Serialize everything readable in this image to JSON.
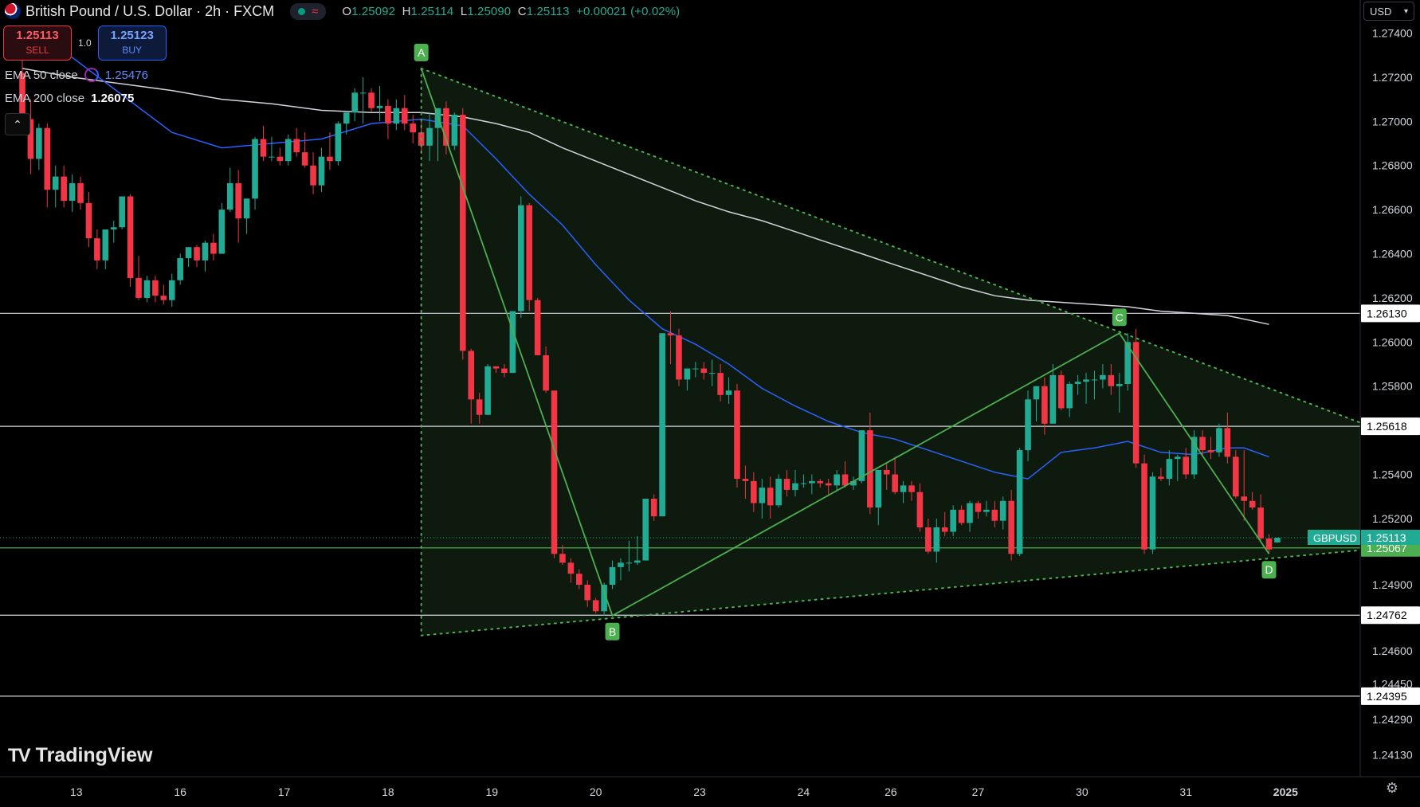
{
  "header": {
    "symbol_title": "British Pound / U.S. Dollar · 2h · FXCM",
    "ohlc": {
      "o": "1.25092",
      "h": "1.25114",
      "l": "1.25090",
      "c": "1.25113",
      "change": "+0.00021 (+0.02%)"
    },
    "status_icon": "market-open-dot"
  },
  "trade": {
    "sell_price": "1.25113",
    "sell_label": "SELL",
    "buy_price": "1.25123",
    "buy_label": "BUY",
    "quantity": "1.0"
  },
  "indicators": {
    "ema50_label": "EMA 50 close",
    "ema50_value": "1.25476",
    "ema200_label": "EMA 200 close",
    "ema200_value": "1.26075"
  },
  "currency_selector": "USD",
  "branding": {
    "logo_text": "TradingView"
  },
  "colors": {
    "up": "#22ab94",
    "down": "#f23645",
    "ema50": "#2962ff",
    "ema200": "#d1d4dc",
    "pattern": "#4caf50",
    "pattern_fill": "#0e1d0e",
    "background": "#000000"
  },
  "chart_data": {
    "type": "candlestick",
    "symbol": "GBPUSD",
    "last_price": 1.25113,
    "ylim": [
      1.2403,
      1.2755
    ],
    "y_ticks": [
      "1.27400",
      "1.27200",
      "1.27000",
      "1.26800",
      "1.26600",
      "1.26400",
      "1.26200",
      "1.26000",
      "1.25800",
      "1.25400",
      "1.25200",
      "1.24900",
      "1.24600",
      "1.24450",
      "1.24290",
      "1.24130"
    ],
    "x_ticks": [
      "13",
      "16",
      "17",
      "18",
      "19",
      "20",
      "23",
      "24",
      "26",
      "27",
      "30",
      "31",
      "2025"
    ],
    "x_tick_index": [
      6.5,
      19,
      31.5,
      44,
      56.5,
      69,
      81.5,
      94,
      104.5,
      115,
      127.5,
      140,
      152
    ],
    "horizontal_levels": [
      1.2613,
      1.25618,
      1.25067,
      1.24762,
      1.24395
    ],
    "level_labels": [
      "1.26130",
      "1.25618",
      "1.25067",
      "1.24762",
      "1.24395"
    ],
    "price_label": "GBPUSD",
    "price_value": "1.25113",
    "pattern_points": [
      {
        "label": "A",
        "i": 48,
        "price": 1.2724
      },
      {
        "label": "B",
        "i": 71,
        "price": 1.2476
      },
      {
        "label": "C",
        "i": 132,
        "price": 1.2604
      },
      {
        "label": "D",
        "i": 150,
        "price": 1.2504
      }
    ],
    "triangle": {
      "upper": [
        [
          48,
          1.2724
        ],
        [
          162,
          1.2562
        ]
      ],
      "lower": [
        [
          48,
          1.2467
        ],
        [
          162,
          1.2506
        ]
      ]
    },
    "candles": [
      [
        1.2722,
        1.2735,
        1.2698,
        1.2701
      ],
      [
        1.2701,
        1.271,
        1.2676,
        1.2683
      ],
      [
        1.2683,
        1.2699,
        1.2678,
        1.2697
      ],
      [
        1.2697,
        1.2699,
        1.2661,
        1.2669
      ],
      [
        1.2669,
        1.268,
        1.2661,
        1.2675
      ],
      [
        1.2675,
        1.268,
        1.2661,
        1.2664
      ],
      [
        1.2664,
        1.2676,
        1.2659,
        1.2672
      ],
      [
        1.2672,
        1.2675,
        1.266,
        1.2663
      ],
      [
        1.2663,
        1.2668,
        1.2643,
        1.2647
      ],
      [
        1.2647,
        1.2651,
        1.2633,
        1.2637
      ],
      [
        1.2637,
        1.2651,
        1.2633,
        1.2651
      ],
      [
        1.2651,
        1.2655,
        1.2645,
        1.2652
      ],
      [
        1.2652,
        1.2666,
        1.2651,
        1.2666
      ],
      [
        1.2666,
        1.2667,
        1.2625,
        1.2629
      ],
      [
        1.2629,
        1.2639,
        1.2619,
        1.262
      ],
      [
        1.262,
        1.263,
        1.2618,
        1.2628
      ],
      [
        1.2628,
        1.263,
        1.2618,
        1.2621
      ],
      [
        1.2621,
        1.2626,
        1.2617,
        1.2619
      ],
      [
        1.2619,
        1.2631,
        1.2616,
        1.2628
      ],
      [
        1.2628,
        1.264,
        1.2626,
        1.2638
      ],
      [
        1.2638,
        1.2643,
        1.2634,
        1.2643
      ],
      [
        1.2643,
        1.2644,
        1.2634,
        1.2637
      ],
      [
        1.2637,
        1.2646,
        1.2632,
        1.2645
      ],
      [
        1.2645,
        1.2649,
        1.2637,
        1.264
      ],
      [
        1.264,
        1.2663,
        1.264,
        1.266
      ],
      [
        1.266,
        1.2679,
        1.2659,
        1.2672
      ],
      [
        1.2672,
        1.2678,
        1.2645,
        1.2656
      ],
      [
        1.2656,
        1.2665,
        1.2649,
        1.2665
      ],
      [
        1.2665,
        1.2693,
        1.266,
        1.2692
      ],
      [
        1.2692,
        1.2698,
        1.2682,
        1.2684
      ],
      [
        1.2684,
        1.2693,
        1.2682,
        1.2684
      ],
      [
        1.2684,
        1.2688,
        1.268,
        1.2682
      ],
      [
        1.2682,
        1.2694,
        1.268,
        1.2692
      ],
      [
        1.2692,
        1.2697,
        1.2684,
        1.2686
      ],
      [
        1.2686,
        1.2695,
        1.2679,
        1.268
      ],
      [
        1.268,
        1.2686,
        1.2667,
        1.2671
      ],
      [
        1.2671,
        1.2688,
        1.2668,
        1.2684
      ],
      [
        1.2684,
        1.2695,
        1.2678,
        1.2682
      ],
      [
        1.2682,
        1.27,
        1.268,
        1.2699
      ],
      [
        1.2699,
        1.2704,
        1.2694,
        1.2704
      ],
      [
        1.2704,
        1.2715,
        1.27,
        1.2713
      ],
      [
        1.2713,
        1.272,
        1.2699,
        1.2713
      ],
      [
        1.2713,
        1.2715,
        1.2704,
        1.2706
      ],
      [
        1.2706,
        1.2716,
        1.27,
        1.2707
      ],
      [
        1.2707,
        1.271,
        1.2692,
        1.2699
      ],
      [
        1.2699,
        1.271,
        1.2696,
        1.2706
      ],
      [
        1.2706,
        1.2712,
        1.2696,
        1.2699
      ],
      [
        1.2699,
        1.2703,
        1.269,
        1.2695
      ],
      [
        1.2695,
        1.27,
        1.2686,
        1.2689
      ],
      [
        1.2689,
        1.2704,
        1.2682,
        1.2697
      ],
      [
        1.2697,
        1.2703,
        1.2682,
        1.2706
      ],
      [
        1.2706,
        1.2709,
        1.2685,
        1.2689
      ],
      [
        1.2689,
        1.2704,
        1.2687,
        1.2703
      ],
      [
        1.2703,
        1.2706,
        1.2592,
        1.2596
      ],
      [
        1.2596,
        1.2597,
        1.2563,
        1.2574
      ],
      [
        1.2574,
        1.2577,
        1.2563,
        1.2567
      ],
      [
        1.2567,
        1.259,
        1.2567,
        1.2589
      ],
      [
        1.2589,
        1.2589,
        1.2586,
        1.2588
      ],
      [
        1.2588,
        1.259,
        1.2584,
        1.2586
      ],
      [
        1.2586,
        1.2614,
        1.2586,
        1.2614
      ],
      [
        1.2614,
        1.2666,
        1.2611,
        1.2662
      ],
      [
        1.2662,
        1.2663,
        1.2614,
        1.2619
      ],
      [
        1.2619,
        1.262,
        1.2594,
        1.2594
      ],
      [
        1.2594,
        1.2598,
        1.2577,
        1.2578
      ],
      [
        1.2578,
        1.2578,
        1.2502,
        1.2504
      ],
      [
        1.2504,
        1.2508,
        1.2499,
        1.25
      ],
      [
        1.25,
        1.2502,
        1.2491,
        1.2495
      ],
      [
        1.2495,
        1.2497,
        1.2488,
        1.249
      ],
      [
        1.249,
        1.2492,
        1.248,
        1.2483
      ],
      [
        1.2483,
        1.2484,
        1.2477,
        1.2478
      ],
      [
        1.2478,
        1.2491,
        1.2476,
        1.249
      ],
      [
        1.249,
        1.2501,
        1.2488,
        1.2498
      ],
      [
        1.2498,
        1.2502,
        1.2492,
        1.25
      ],
      [
        1.25,
        1.251,
        1.2496,
        1.25
      ],
      [
        1.25,
        1.2512,
        1.2499,
        1.2501
      ],
      [
        1.2501,
        1.2529,
        1.2501,
        1.2529
      ],
      [
        1.2529,
        1.2531,
        1.2519,
        1.2521
      ],
      [
        1.2521,
        1.2604,
        1.2521,
        1.2604
      ],
      [
        1.2604,
        1.2614,
        1.259,
        1.2603
      ],
      [
        1.2603,
        1.2606,
        1.258,
        1.2583
      ],
      [
        1.2583,
        1.2588,
        1.2578,
        1.2588
      ],
      [
        1.2588,
        1.2591,
        1.2584,
        1.2588
      ],
      [
        1.2588,
        1.2591,
        1.2583,
        1.2586
      ],
      [
        1.2586,
        1.2592,
        1.258,
        1.2586
      ],
      [
        1.2586,
        1.259,
        1.2573,
        1.2576
      ],
      [
        1.2576,
        1.2584,
        1.2572,
        1.2578
      ],
      [
        1.2578,
        1.2581,
        1.2534,
        1.2538
      ],
      [
        1.2538,
        1.2544,
        1.2529,
        1.2537
      ],
      [
        1.2537,
        1.2541,
        1.2523,
        1.2527
      ],
      [
        1.2527,
        1.2538,
        1.252,
        1.2534
      ],
      [
        1.2534,
        1.2539,
        1.252,
        1.2526
      ],
      [
        1.2526,
        1.254,
        1.2525,
        1.2538
      ],
      [
        1.2538,
        1.2542,
        1.253,
        1.2533
      ],
      [
        1.2533,
        1.2542,
        1.253,
        1.2536
      ],
      [
        1.2536,
        1.254,
        1.2534,
        1.2536
      ],
      [
        1.2536,
        1.254,
        1.2531,
        1.2537
      ],
      [
        1.2537,
        1.2538,
        1.2534,
        1.2536
      ],
      [
        1.2536,
        1.2538,
        1.2531,
        1.2535
      ],
      [
        1.2535,
        1.2542,
        1.2533,
        1.254
      ],
      [
        1.254,
        1.2546,
        1.2534,
        1.2535
      ],
      [
        1.2535,
        1.2539,
        1.2533,
        1.2537
      ],
      [
        1.2537,
        1.256,
        1.2536,
        1.256
      ],
      [
        1.256,
        1.2568,
        1.2522,
        1.2525
      ],
      [
        1.2525,
        1.254,
        1.2517,
        1.2542
      ],
      [
        1.2542,
        1.2545,
        1.2533,
        1.254
      ],
      [
        1.254,
        1.2548,
        1.2531,
        1.2532
      ],
      [
        1.2532,
        1.2537,
        1.2527,
        1.2535
      ],
      [
        1.2535,
        1.2537,
        1.2528,
        1.2532
      ],
      [
        1.2532,
        1.2536,
        1.2514,
        1.2516
      ],
      [
        1.2516,
        1.252,
        1.2504,
        1.2505
      ],
      [
        1.2505,
        1.252,
        1.25,
        1.2516
      ],
      [
        1.2516,
        1.2523,
        1.2512,
        1.2514
      ],
      [
        1.2514,
        1.2526,
        1.2512,
        1.2524
      ],
      [
        1.2524,
        1.2526,
        1.2517,
        1.2518
      ],
      [
        1.2518,
        1.2528,
        1.2514,
        1.2527
      ],
      [
        1.2527,
        1.2528,
        1.252,
        1.2523
      ],
      [
        1.2523,
        1.2528,
        1.2521,
        1.2524
      ],
      [
        1.2524,
        1.2528,
        1.2516,
        1.2519
      ],
      [
        1.2519,
        1.253,
        1.2515,
        1.2528
      ],
      [
        1.2528,
        1.2533,
        1.2501,
        1.2504
      ],
      [
        1.2504,
        1.2552,
        1.2503,
        1.2551
      ],
      [
        1.2551,
        1.2578,
        1.2546,
        1.2574
      ],
      [
        1.2574,
        1.258,
        1.2564,
        1.258
      ],
      [
        1.258,
        1.2584,
        1.2558,
        1.2563
      ],
      [
        1.2563,
        1.259,
        1.2563,
        1.2585
      ],
      [
        1.2585,
        1.2587,
        1.2569,
        1.257
      ],
      [
        1.257,
        1.2582,
        1.2566,
        1.2581
      ],
      [
        1.2581,
        1.2585,
        1.2576,
        1.2582
      ],
      [
        1.2582,
        1.2586,
        1.2572,
        1.2583
      ],
      [
        1.2583,
        1.2587,
        1.2574,
        1.2583
      ],
      [
        1.2583,
        1.259,
        1.2579,
        1.2585
      ],
      [
        1.2585,
        1.259,
        1.2576,
        1.258
      ],
      [
        1.258,
        1.2586,
        1.2568,
        1.2581
      ],
      [
        1.2581,
        1.2604,
        1.2578,
        1.26
      ],
      [
        1.26,
        1.2606,
        1.2543,
        1.2545
      ],
      [
        1.2545,
        1.2549,
        1.2504,
        1.2506
      ],
      [
        1.2506,
        1.2541,
        1.2504,
        1.2539
      ],
      [
        1.2539,
        1.2543,
        1.2537,
        1.2538
      ],
      [
        1.2538,
        1.2551,
        1.2535,
        1.2547
      ],
      [
        1.2547,
        1.2549,
        1.2537,
        1.2548
      ],
      [
        1.2548,
        1.2552,
        1.2538,
        1.254
      ],
      [
        1.254,
        1.256,
        1.2538,
        1.2557
      ],
      [
        1.2557,
        1.256,
        1.2548,
        1.2551
      ],
      [
        1.2551,
        1.2557,
        1.2547,
        1.255
      ],
      [
        1.255,
        1.2563,
        1.2548,
        1.2561
      ],
      [
        1.2561,
        1.2568,
        1.2545,
        1.2548
      ],
      [
        1.2548,
        1.2551,
        1.2529,
        1.253
      ],
      [
        1.253,
        1.2551,
        1.2519,
        1.2528
      ],
      [
        1.2528,
        1.2532,
        1.2524,
        1.2525
      ],
      [
        1.2525,
        1.2531,
        1.251,
        1.2511
      ],
      [
        1.2511,
        1.2513,
        1.2504,
        1.2506
      ],
      [
        1.25092,
        1.25114,
        1.2509,
        1.25113
      ]
    ],
    "ema50": [
      [
        0,
        1.2735
      ],
      [
        6,
        1.2729
      ],
      [
        12,
        1.2712
      ],
      [
        18,
        1.2695
      ],
      [
        24,
        1.2688
      ],
      [
        30,
        1.269
      ],
      [
        36,
        1.2692
      ],
      [
        42,
        1.2699
      ],
      [
        48,
        1.2701
      ],
      [
        53,
        1.2698
      ],
      [
        57,
        1.2683
      ],
      [
        61,
        1.2667
      ],
      [
        65,
        1.2653
      ],
      [
        69,
        1.2635
      ],
      [
        73,
        1.2619
      ],
      [
        77,
        1.2606
      ],
      [
        81,
        1.2599
      ],
      [
        85,
        1.259
      ],
      [
        89,
        1.2579
      ],
      [
        93,
        1.2571
      ],
      [
        97,
        1.2564
      ],
      [
        101,
        1.2559
      ],
      [
        105,
        1.2556
      ],
      [
        109,
        1.2551
      ],
      [
        113,
        1.2546
      ],
      [
        117,
        1.2541
      ],
      [
        121,
        1.2538
      ],
      [
        125,
        1.255
      ],
      [
        129,
        1.2552
      ],
      [
        133,
        1.2555
      ],
      [
        137,
        1.255
      ],
      [
        141,
        1.2549
      ],
      [
        145,
        1.2552
      ],
      [
        147,
        1.2552
      ],
      [
        150,
        1.2548
      ]
    ],
    "ema200": [
      [
        0,
        1.2724
      ],
      [
        6,
        1.272
      ],
      [
        12,
        1.2717
      ],
      [
        18,
        1.2714
      ],
      [
        24,
        1.271
      ],
      [
        30,
        1.2708
      ],
      [
        36,
        1.2705
      ],
      [
        42,
        1.2704
      ],
      [
        48,
        1.2704
      ],
      [
        53,
        1.2702
      ],
      [
        57,
        1.2699
      ],
      [
        61,
        1.2695
      ],
      [
        65,
        1.2688
      ],
      [
        69,
        1.2682
      ],
      [
        73,
        1.2676
      ],
      [
        77,
        1.267
      ],
      [
        81,
        1.2664
      ],
      [
        85,
        1.2659
      ],
      [
        89,
        1.2655
      ],
      [
        93,
        1.265
      ],
      [
        97,
        1.2645
      ],
      [
        101,
        1.264
      ],
      [
        105,
        1.2635
      ],
      [
        109,
        1.263
      ],
      [
        113,
        1.2625
      ],
      [
        117,
        1.2621
      ],
      [
        121,
        1.2619
      ],
      [
        125,
        1.2618
      ],
      [
        129,
        1.2617
      ],
      [
        133,
        1.2616
      ],
      [
        137,
        1.2614
      ],
      [
        141,
        1.2613
      ],
      [
        145,
        1.2612
      ],
      [
        150,
        1.2608
      ]
    ]
  }
}
